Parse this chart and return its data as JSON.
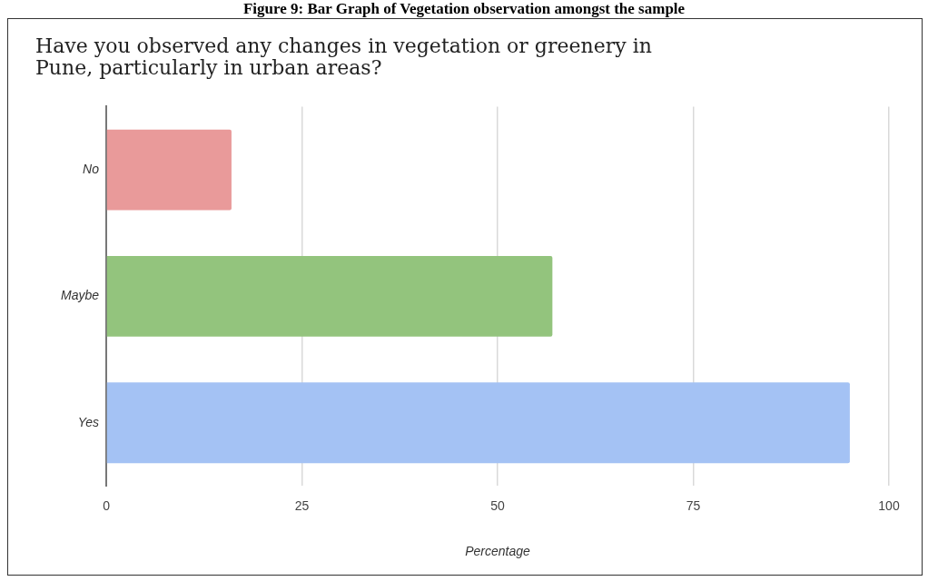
{
  "chart_data": {
    "type": "bar",
    "orientation": "horizontal",
    "title": "Have you observed any changes in vegetation or greenery in Pune, particularly in urban areas?",
    "annotations": [
      "Figure 9: Bar Graph of Vegetation observation amongst the sample"
    ],
    "xlabel": "Percentage",
    "categories": [
      "No",
      "Maybe",
      "Yes"
    ],
    "values": [
      16,
      57,
      95
    ],
    "colors": [
      "#e99a9a",
      "#93c47d",
      "#a4c2f4"
    ],
    "xlim": [
      0,
      100
    ],
    "xticks": [
      0,
      25,
      50,
      75,
      100
    ],
    "grid": "x",
    "legend": false
  }
}
